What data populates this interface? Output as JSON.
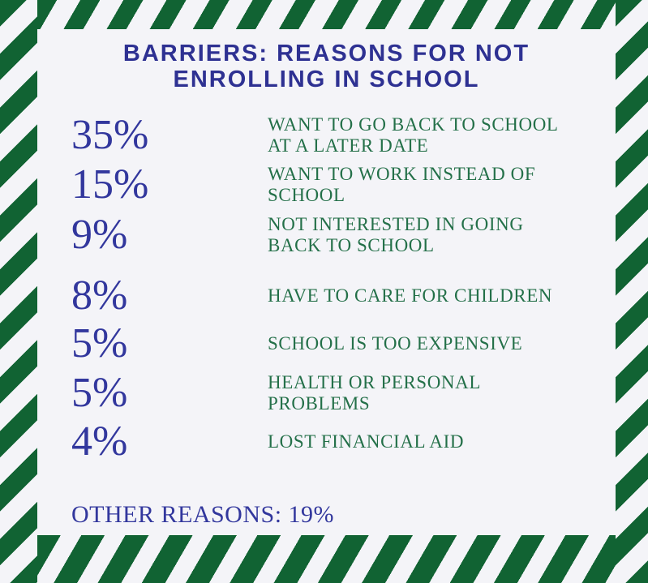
{
  "theme": {
    "background": "#f4f4f8",
    "stripe_green": "#116333",
    "title_navy": "#2e3192",
    "percent_navy": "#32379d",
    "label_green": "#247049"
  },
  "title": {
    "line1": "BARRIERS: REASONS FOR NOT",
    "line2": "ENROLLING IN SCHOOL",
    "full": "BARRIERS: REASONS FOR NOT ENROLLING IN SCHOOL"
  },
  "rows": [
    {
      "percent": "35%",
      "label_lines": [
        "WANT TO GO BACK TO SCHOOL",
        "AT A LATER DATE"
      ]
    },
    {
      "percent": "15%",
      "label_lines": [
        "WANT TO WORK INSTEAD OF",
        "SCHOOL"
      ]
    },
    {
      "percent": "9%",
      "label_lines": [
        "NOT INTERESTED IN GOING",
        "BACK TO SCHOOL"
      ]
    },
    {
      "percent": "8%",
      "label_lines": [
        "HAVE TO CARE FOR CHILDREN"
      ]
    },
    {
      "percent": "5%",
      "label_lines": [
        "SCHOOL IS TOO EXPENSIVE"
      ]
    },
    {
      "percent": "5%",
      "label_lines": [
        "HEALTH OR PERSONAL",
        "PROBLEMS"
      ]
    },
    {
      "percent": "4%",
      "label_lines": [
        "LOST FINANCIAL AID"
      ]
    }
  ],
  "footer": {
    "text": "OTHER REASONS: 19%"
  },
  "chart_data": {
    "type": "table",
    "title": "Barriers: Reasons for Not Enrolling in School",
    "categories": [
      "Want to go back to school at a later date",
      "Want to work instead of school",
      "Not interested in going back to school",
      "Have to care for children",
      "School is too expensive",
      "Health or personal problems",
      "Lost financial aid"
    ],
    "values": [
      35,
      15,
      9,
      8,
      5,
      5,
      4
    ],
    "unit": "percent",
    "other_reasons_label": "Other reasons",
    "other_reasons_value": 19
  }
}
